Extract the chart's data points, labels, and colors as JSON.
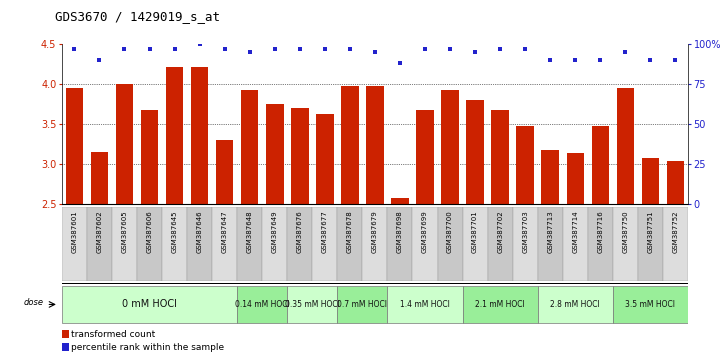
{
  "title": "GDS3670 / 1429019_s_at",
  "samples": [
    "GSM387601",
    "GSM387602",
    "GSM387605",
    "GSM387606",
    "GSM387645",
    "GSM387646",
    "GSM387647",
    "GSM387648",
    "GSM387649",
    "GSM387676",
    "GSM387677",
    "GSM387678",
    "GSM387679",
    "GSM387698",
    "GSM387699",
    "GSM387700",
    "GSM387701",
    "GSM387702",
    "GSM387703",
    "GSM387713",
    "GSM387714",
    "GSM387716",
    "GSM387750",
    "GSM387751",
    "GSM387752"
  ],
  "bar_values": [
    3.95,
    3.15,
    4.0,
    3.67,
    4.22,
    4.22,
    3.3,
    3.93,
    3.75,
    3.7,
    3.62,
    3.97,
    3.97,
    2.57,
    3.67,
    3.93,
    3.8,
    3.67,
    3.47,
    3.17,
    3.13,
    3.47,
    3.95,
    3.07,
    3.04
  ],
  "percentile_values": [
    97,
    90,
    97,
    97,
    97,
    100,
    97,
    95,
    97,
    97,
    97,
    97,
    95,
    88,
    97,
    97,
    95,
    97,
    97,
    90,
    90,
    90,
    95,
    90,
    90
  ],
  "dose_groups": [
    {
      "label": "0 mM HOCl",
      "start": 0,
      "end": 7,
      "color": "#ccffcc"
    },
    {
      "label": "0.14 mM HOCl",
      "start": 7,
      "end": 9,
      "color": "#99ee99"
    },
    {
      "label": "0.35 mM HOCl",
      "start": 9,
      "end": 11,
      "color": "#ccffcc"
    },
    {
      "label": "0.7 mM HOCl",
      "start": 11,
      "end": 13,
      "color": "#99ee99"
    },
    {
      "label": "1.4 mM HOCl",
      "start": 13,
      "end": 16,
      "color": "#ccffcc"
    },
    {
      "label": "2.1 mM HOCl",
      "start": 16,
      "end": 19,
      "color": "#99ee99"
    },
    {
      "label": "2.8 mM HOCl",
      "start": 19,
      "end": 22,
      "color": "#ccffcc"
    },
    {
      "label": "3.5 mM HOCl",
      "start": 22,
      "end": 25,
      "color": "#99ee99"
    }
  ],
  "bar_color": "#cc2200",
  "dot_color": "#2222cc",
  "ylim_left": [
    2.5,
    4.5
  ],
  "ylim_right": [
    0,
    100
  ],
  "yticks_left": [
    2.5,
    3.0,
    3.5,
    4.0,
    4.5
  ],
  "yticks_right": [
    0,
    25,
    50,
    75,
    100
  ],
  "ytick_labels_right": [
    "0",
    "25",
    "50",
    "75",
    "100%"
  ],
  "grid_lines": [
    3.0,
    3.5,
    4.0
  ],
  "title_fontsize": 9,
  "bar_width": 0.7,
  "figsize": [
    7.28,
    3.54
  ],
  "dpi": 100
}
